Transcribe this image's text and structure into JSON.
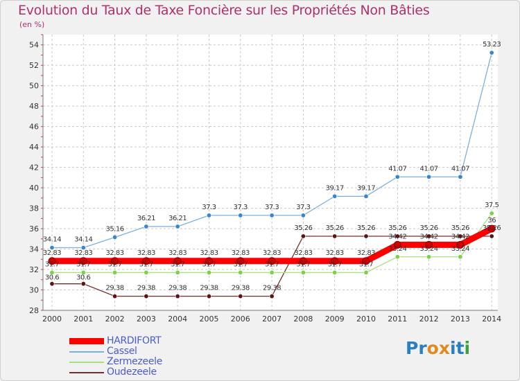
{
  "title": "Evolution du Taux de Taxe Foncière sur les Propriétés Non Bâties",
  "subtitle": "(en %)",
  "logo": "Proxiti",
  "chart_data": {
    "type": "line",
    "x": [
      "2000",
      "2001",
      "2002",
      "2003",
      "2004",
      "2005",
      "2006",
      "2007",
      "2008",
      "2009",
      "2010",
      "2011",
      "2012",
      "2013",
      "2014"
    ],
    "ylim": [
      28,
      55
    ],
    "yticks": [
      28,
      30,
      32,
      34,
      36,
      38,
      40,
      42,
      44,
      46,
      48,
      50,
      52,
      54
    ],
    "grid": true,
    "legend_position": "bottom-left",
    "series": [
      {
        "name": "Oudezeele",
        "color": "#7a2a2a",
        "marker": "#5a1414",
        "values": [
          30.6,
          30.6,
          29.38,
          29.38,
          29.38,
          29.38,
          29.38,
          29.38,
          35.26,
          35.26,
          35.26,
          35.26,
          35.26,
          35.26,
          35.26
        ],
        "labels": [
          "30.6",
          "30.6",
          "29.38",
          "29.38",
          "29.38",
          "29.38",
          "29.38",
          "29.38",
          "35.26",
          "35.26",
          "35.26",
          "35.26",
          "35.26",
          "35.26",
          "35.26"
        ]
      },
      {
        "name": "Zermezeele",
        "color": "#a8e080",
        "marker": "#7cd04a",
        "values": [
          31.7,
          31.7,
          31.7,
          31.7,
          31.7,
          31.7,
          31.7,
          31.7,
          31.7,
          31.7,
          31.7,
          33.24,
          33.24,
          33.24,
          37.5
        ],
        "labels": [
          "31.7",
          "31.7",
          "31.7",
          "31.7",
          "31.7",
          "31.7",
          "31.7",
          "31.7",
          "31.7",
          "31.7",
          "31.7",
          "33.24",
          "33.24",
          "33.24",
          "37.5"
        ]
      },
      {
        "name": "Cassel",
        "color": "#7ab0e0",
        "marker": "#3a86cc",
        "values": [
          34.14,
          34.14,
          35.16,
          36.21,
          36.21,
          37.3,
          37.3,
          37.3,
          37.3,
          39.17,
          39.17,
          41.07,
          41.07,
          41.07,
          53.23
        ],
        "labels": [
          "34.14",
          "34.14",
          "35.16",
          "36.21",
          "36.21",
          "37.3",
          "37.3",
          "37.3",
          "37.3",
          "39.17",
          "39.17",
          "41.07",
          "41.07",
          "41.07",
          "53.23"
        ]
      },
      {
        "name": "HARDIFORT",
        "color": "#ff0000",
        "marker": "#cc0000",
        "values": [
          32.83,
          32.83,
          32.83,
          32.83,
          32.83,
          32.83,
          32.83,
          32.83,
          32.83,
          32.83,
          32.83,
          34.42,
          34.42,
          34.42,
          36
        ],
        "labels": [
          "32.83",
          "32.83",
          "32.83",
          "32.83",
          "32.83",
          "32.83",
          "32.83",
          "32.83",
          "32.83",
          "32.83",
          "32.83",
          "34.42",
          "34.42",
          "34.42",
          "36"
        ]
      }
    ]
  },
  "legend": [
    {
      "name": "HARDIFORT",
      "color": "#ff0000"
    },
    {
      "name": "Cassel",
      "color": "#7ab0e0"
    },
    {
      "name": "Zermezeele",
      "color": "#a8e080"
    },
    {
      "name": "Oudezeele",
      "color": "#7a2a2a"
    }
  ]
}
